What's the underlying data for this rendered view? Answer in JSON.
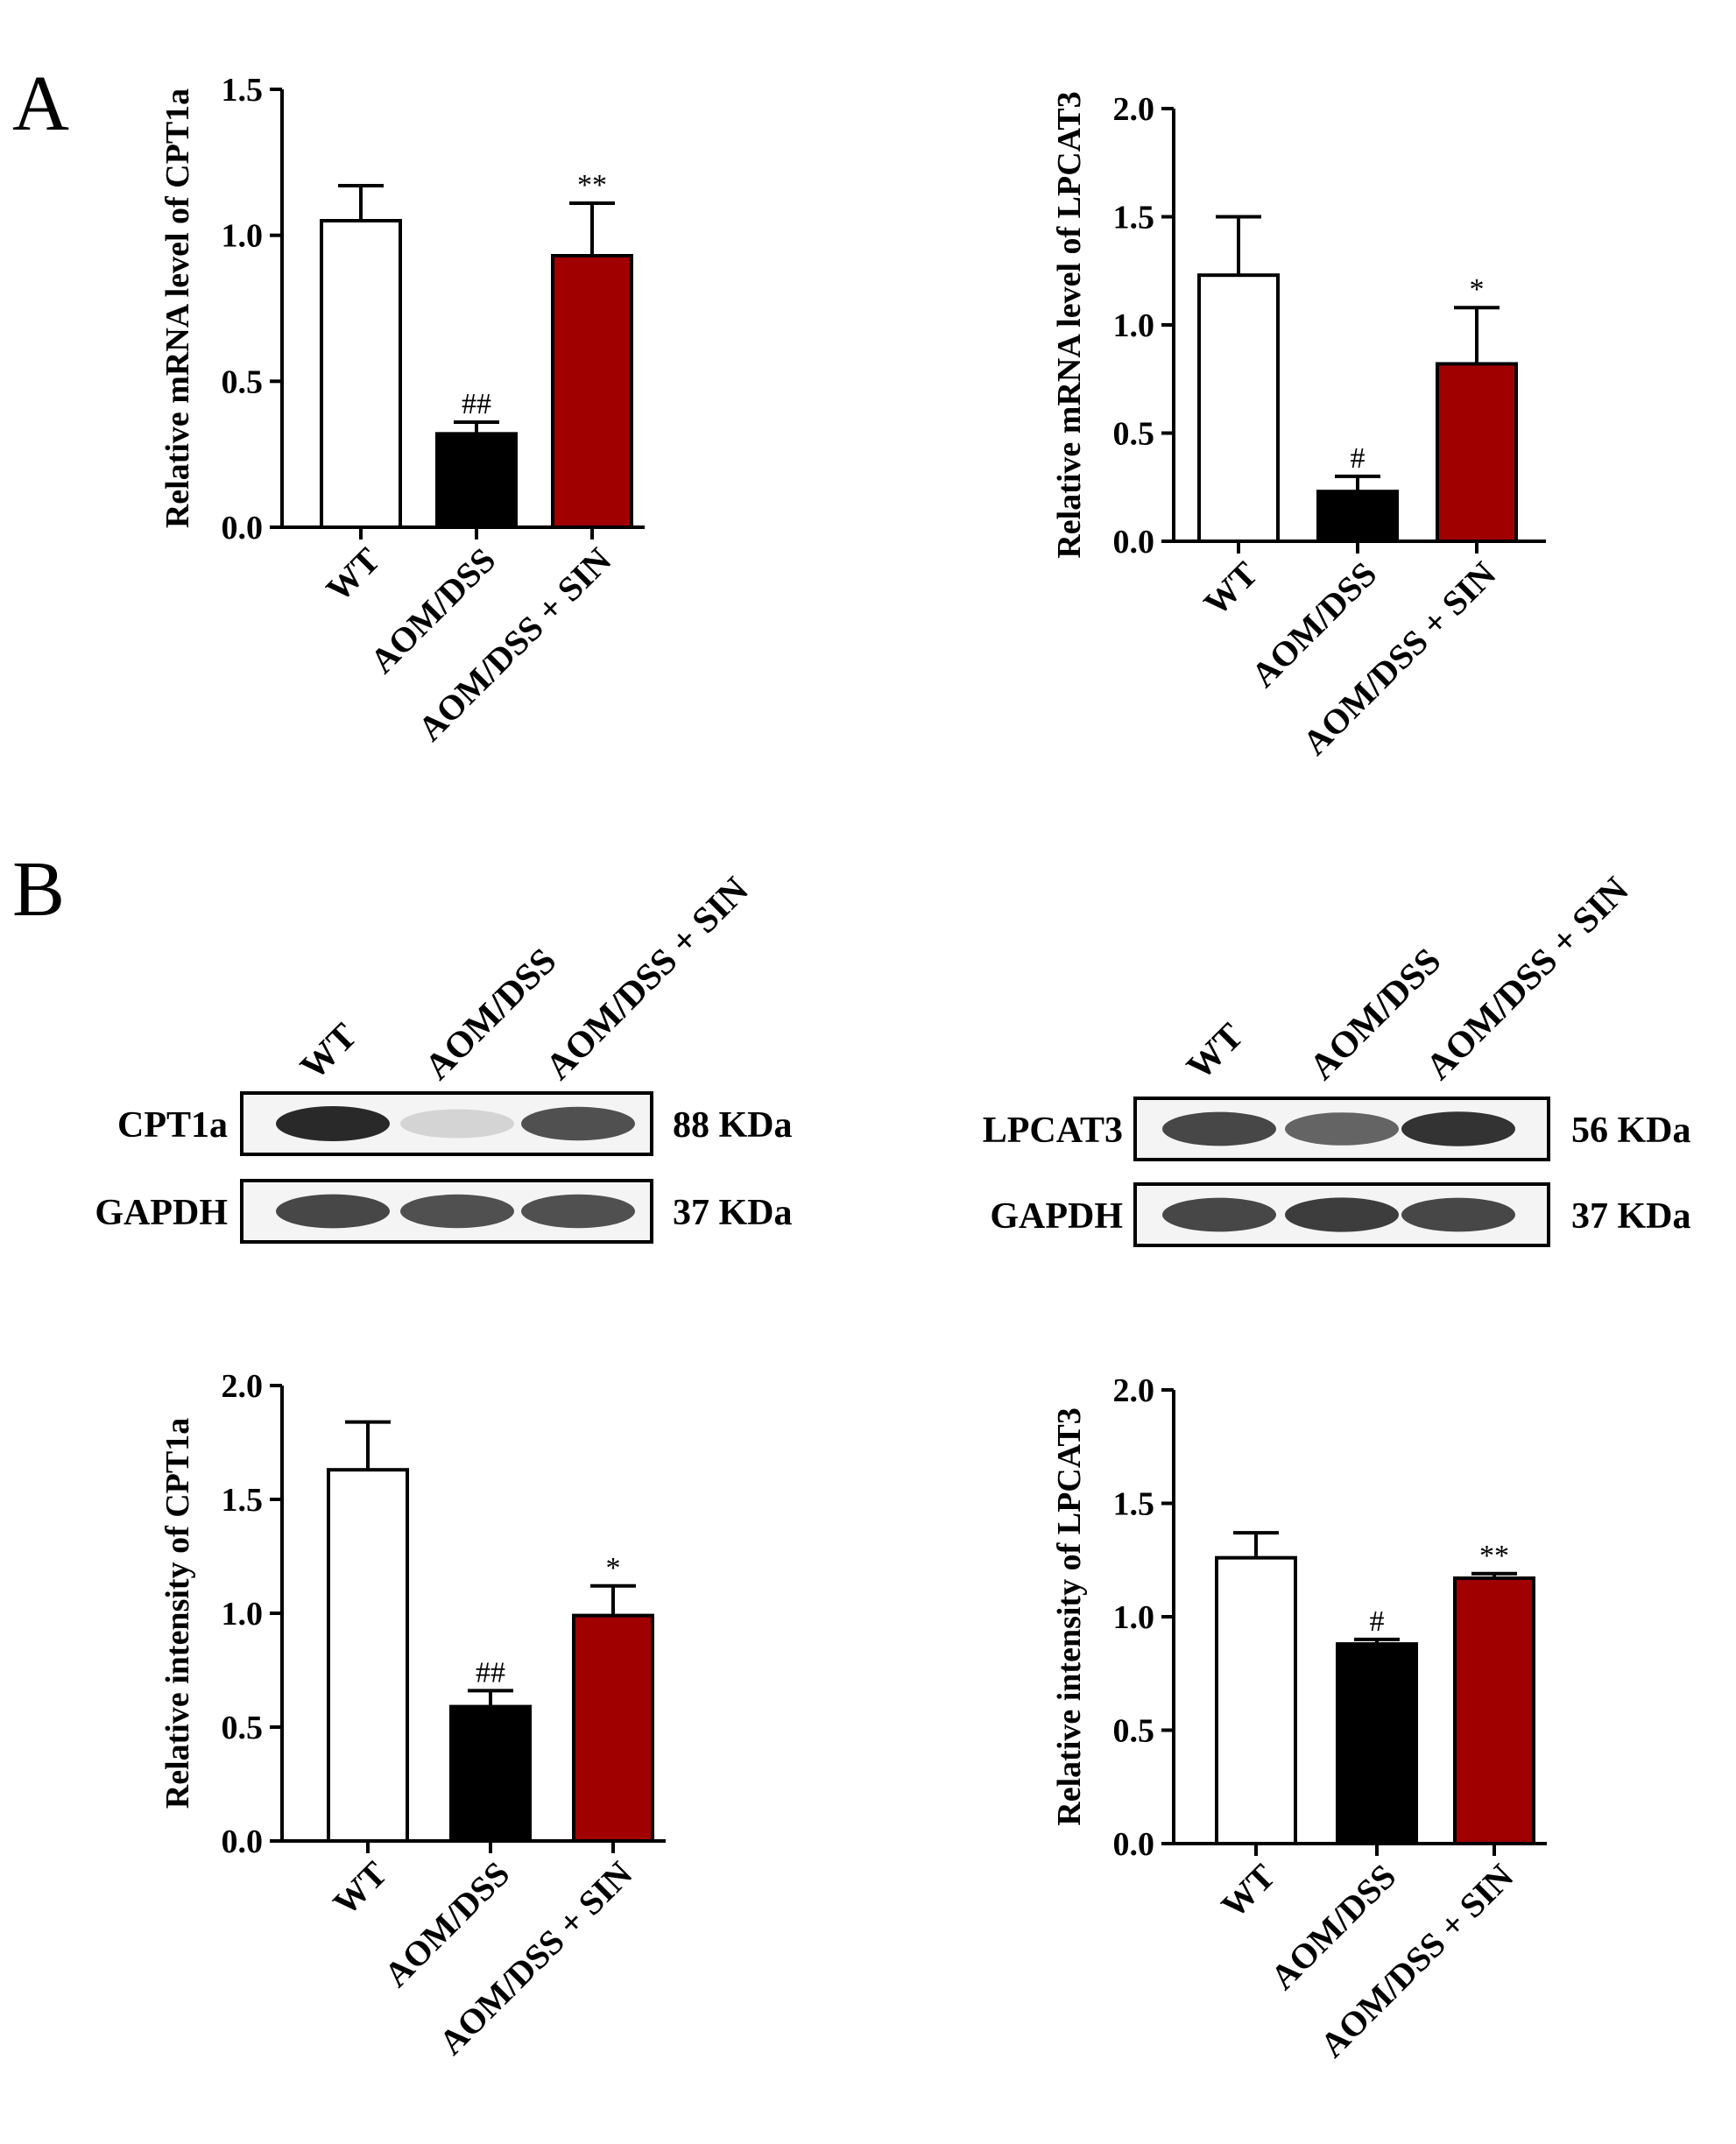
{
  "panel_labels": [
    "A",
    "B"
  ],
  "colors": {
    "wt": "#ffffff",
    "aom": "#000000",
    "sin": "#a00000",
    "axis": "#000000"
  },
  "chart_data": [
    {
      "type": "bar",
      "panel": "A",
      "ylabel": "Relative mRNA level of CPT1a",
      "ylim": [
        0,
        1.5
      ],
      "yticks": [
        "0.0",
        "0.5",
        "1.0",
        "1.5"
      ],
      "categories": [
        "WT",
        "AOM/DSS",
        "AOM/DSS + SIN"
      ],
      "values": [
        1.05,
        0.32,
        0.93
      ],
      "errors": [
        0.12,
        0.04,
        0.18
      ],
      "significance": [
        "",
        "##",
        "**"
      ]
    },
    {
      "type": "bar",
      "panel": "A",
      "ylabel": "Relative mRNA level of LPCAT3",
      "ylim": [
        0,
        2.0
      ],
      "yticks": [
        "0.0",
        "0.5",
        "1.0",
        "1.5",
        "2.0"
      ],
      "categories": [
        "WT",
        "AOM/DSS",
        "AOM/DSS + SIN"
      ],
      "values": [
        1.23,
        0.23,
        0.82
      ],
      "errors": [
        0.27,
        0.07,
        0.26
      ],
      "significance": [
        "",
        "#",
        "*"
      ]
    },
    {
      "type": "bar",
      "panel": "B",
      "ylabel": "Relative intensity of CPT1a",
      "ylim": [
        0,
        2.0
      ],
      "yticks": [
        "0.0",
        "0.5",
        "1.0",
        "1.5",
        "2.0"
      ],
      "categories": [
        "WT",
        "AOM/DSS",
        "AOM/DSS + SIN"
      ],
      "values": [
        1.63,
        0.59,
        0.99
      ],
      "errors": [
        0.21,
        0.07,
        0.13
      ],
      "significance": [
        "",
        "##",
        "*"
      ]
    },
    {
      "type": "bar",
      "panel": "B",
      "ylabel": "Relative intensity of LPCAT3",
      "ylim": [
        0,
        2.0
      ],
      "yticks": [
        "0.0",
        "0.5",
        "1.0",
        "1.5",
        "2.0"
      ],
      "categories": [
        "WT",
        "AOM/DSS",
        "AOM/DSS + SIN"
      ],
      "values": [
        1.26,
        0.88,
        1.17
      ],
      "errors": [
        0.11,
        0.02,
        0.02
      ],
      "significance": [
        "",
        "#",
        "**"
      ]
    }
  ],
  "blots": [
    {
      "lanes": [
        "WT",
        "AOM/DSS",
        "AOM/DSS + SIN"
      ],
      "rows": [
        {
          "protein": "CPT1a",
          "size": "88 KDa",
          "intensities": [
            1.0,
            0.12,
            0.8
          ]
        },
        {
          "protein": "GAPDH",
          "size": "37 KDa",
          "intensities": [
            0.85,
            0.8,
            0.8
          ]
        }
      ]
    },
    {
      "lanes": [
        "WT",
        "AOM/DSS",
        "AOM/DSS + SIN"
      ],
      "rows": [
        {
          "protein": "LPCAT3",
          "size": "56 KDa",
          "intensities": [
            0.85,
            0.7,
            0.95
          ]
        },
        {
          "protein": "GAPDH",
          "size": "37 KDa",
          "intensities": [
            0.85,
            0.9,
            0.85
          ]
        }
      ]
    }
  ]
}
